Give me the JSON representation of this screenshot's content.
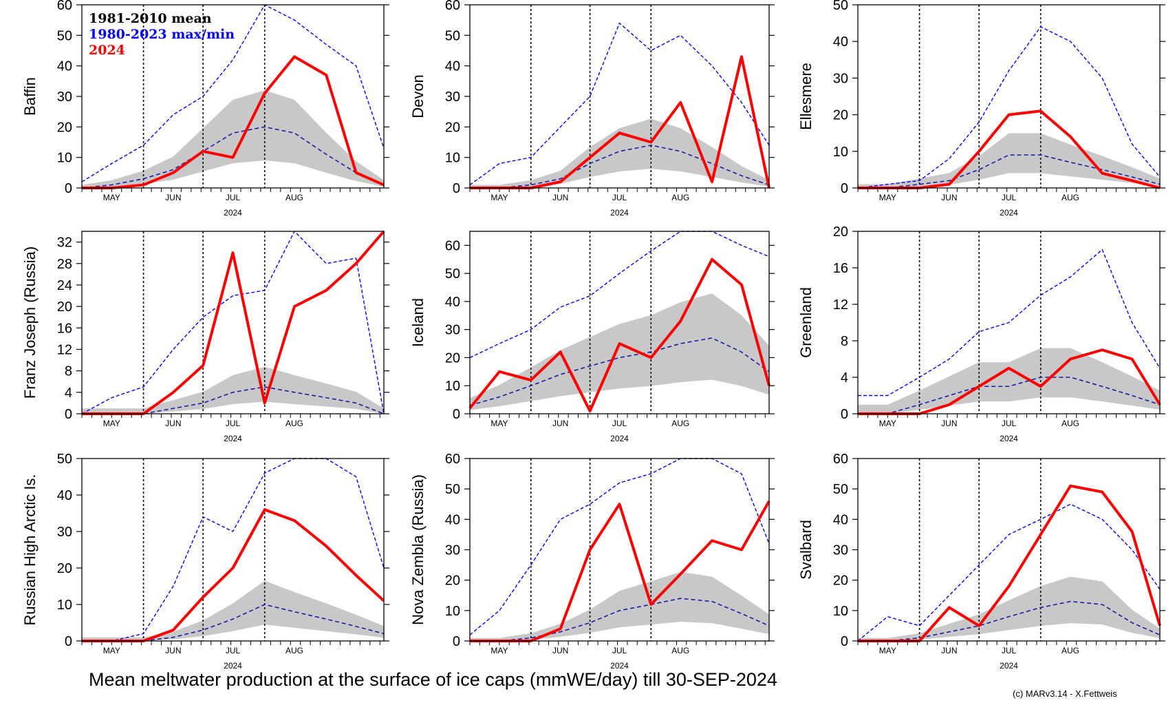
{
  "caption": "Mean meltwater production at the surface of ice caps (mmWE/day) till 30-SEP-2024",
  "credit": "(c) MARv3.14 - X.Fettweis",
  "legend": {
    "mean_label": "1981-2010 mean",
    "maxmin_label": "1980-2023 max/min",
    "current_label": "2024"
  },
  "colors": {
    "current": "#ff0000",
    "maxmin": "#0000ff",
    "mean": "#1a1aa6",
    "envelope": "#c8c8c8",
    "month_divider": "#000000"
  },
  "chart_data": [
    {
      "type": "line",
      "ylabel": "Baffin",
      "xlabel": "2024",
      "month_ticks": [
        "MAY",
        "JUN",
        "JUL",
        "AUG"
      ],
      "yticks": [
        "0",
        "10",
        "20",
        "30",
        "40",
        "50",
        "60"
      ],
      "ylim": [
        0,
        60
      ],
      "x": [
        "05-01",
        "05-15",
        "06-01",
        "06-15",
        "07-01",
        "07-15",
        "08-01",
        "08-15",
        "09-01",
        "09-15",
        "09-30"
      ],
      "series": [
        {
          "name": "2024",
          "values": [
            0,
            0,
            1,
            5,
            12,
            10,
            31,
            43,
            37,
            5,
            1
          ]
        },
        {
          "name": "1981-2010 mean",
          "values": [
            0,
            1,
            3,
            6,
            12,
            18,
            20,
            18,
            11,
            5,
            1
          ]
        },
        {
          "name": "1980-2023 max/min",
          "values": [
            2,
            8,
            14,
            24,
            30,
            42,
            60,
            55,
            47,
            40,
            13
          ]
        }
      ]
    },
    {
      "type": "line",
      "ylabel": "Devon",
      "xlabel": "2024",
      "month_ticks": [
        "MAY",
        "JUN",
        "JUL",
        "AUG"
      ],
      "yticks": [
        "0",
        "10",
        "20",
        "30",
        "40",
        "50",
        "60"
      ],
      "ylim": [
        0,
        60
      ],
      "x": [
        "05-01",
        "05-15",
        "06-01",
        "06-15",
        "07-01",
        "07-15",
        "08-01",
        "08-15",
        "09-01",
        "09-15",
        "09-30"
      ],
      "series": [
        {
          "name": "2024",
          "values": [
            0,
            0,
            0,
            2,
            10,
            18,
            15,
            28,
            2,
            43,
            0
          ]
        },
        {
          "name": "1981-2010 mean",
          "values": [
            0,
            0,
            1,
            3,
            8,
            12,
            14,
            12,
            8,
            4,
            1
          ]
        },
        {
          "name": "1980-2023 max/min",
          "values": [
            1,
            8,
            10,
            20,
            30,
            54,
            45,
            50,
            40,
            28,
            14
          ]
        }
      ]
    },
    {
      "type": "line",
      "ylabel": "Ellesmere",
      "xlabel": "2024",
      "month_ticks": [
        "MAY",
        "JUN",
        "JUL",
        "AUG"
      ],
      "yticks": [
        "0",
        "10",
        "20",
        "30",
        "40",
        "50"
      ],
      "ylim": [
        0,
        50
      ],
      "x": [
        "05-01",
        "05-15",
        "06-01",
        "06-15",
        "07-01",
        "07-15",
        "08-01",
        "08-15",
        "09-01",
        "09-15",
        "09-30"
      ],
      "series": [
        {
          "name": "2024",
          "values": [
            0,
            0,
            0,
            1,
            10,
            20,
            21,
            14,
            4,
            2,
            0
          ]
        },
        {
          "name": "1981-2010 mean",
          "values": [
            0,
            0,
            1,
            2,
            5,
            9,
            9,
            7,
            5,
            3,
            1
          ]
        },
        {
          "name": "1980-2023 max/min",
          "values": [
            0,
            1,
            2,
            8,
            18,
            32,
            44,
            40,
            30,
            12,
            3
          ]
        }
      ]
    },
    {
      "type": "line",
      "ylabel": "Franz Joseph (Russia)",
      "xlabel": "2024",
      "month_ticks": [
        "MAY",
        "JUN",
        "JUL",
        "AUG"
      ],
      "yticks": [
        "0",
        "4",
        "8",
        "12",
        "16",
        "20",
        "24",
        "28",
        "32"
      ],
      "ylim": [
        0,
        34
      ],
      "x": [
        "05-01",
        "05-15",
        "06-01",
        "06-15",
        "07-01",
        "07-15",
        "08-01",
        "08-15",
        "09-01",
        "09-15",
        "09-30"
      ],
      "series": [
        {
          "name": "2024",
          "values": [
            0,
            0,
            0,
            4,
            9,
            30,
            2,
            20,
            23,
            28,
            34
          ]
        },
        {
          "name": "1981-2010 mean",
          "values": [
            0,
            0,
            0,
            1,
            2,
            4,
            5,
            4,
            3,
            2,
            0
          ]
        },
        {
          "name": "1980-2023 max/min",
          "values": [
            0,
            3,
            5,
            12,
            18,
            22,
            23,
            34,
            28,
            29,
            0
          ]
        }
      ]
    },
    {
      "type": "line",
      "ylabel": "Iceland",
      "xlabel": "2024",
      "month_ticks": [
        "MAY",
        "JUN",
        "JUL",
        "AUG"
      ],
      "yticks": [
        "0",
        "10",
        "20",
        "30",
        "40",
        "50",
        "60"
      ],
      "ylim": [
        0,
        65
      ],
      "x": [
        "05-01",
        "05-15",
        "06-01",
        "06-15",
        "07-01",
        "07-15",
        "08-01",
        "08-15",
        "09-01",
        "09-15",
        "09-30"
      ],
      "series": [
        {
          "name": "2024",
          "values": [
            2,
            15,
            12,
            22,
            1,
            25,
            20,
            33,
            55,
            46,
            10
          ]
        },
        {
          "name": "1981-2010 mean",
          "values": [
            3,
            6,
            10,
            14,
            17,
            20,
            22,
            25,
            27,
            22,
            15
          ]
        },
        {
          "name": "1980-2023 max/min",
          "values": [
            20,
            25,
            30,
            38,
            42,
            50,
            58,
            65,
            65,
            60,
            56
          ]
        }
      ]
    },
    {
      "type": "line",
      "ylabel": "Greenland",
      "xlabel": "2024",
      "month_ticks": [
        "MAY",
        "JUN",
        "JUL",
        "AUG"
      ],
      "yticks": [
        "0",
        "4",
        "8",
        "12",
        "16",
        "20"
      ],
      "ylim": [
        0,
        20
      ],
      "x": [
        "05-01",
        "05-15",
        "06-01",
        "06-15",
        "07-01",
        "07-15",
        "08-01",
        "08-15",
        "09-01",
        "09-15",
        "09-30"
      ],
      "series": [
        {
          "name": "2024",
          "values": [
            0,
            0,
            0,
            1,
            3,
            5,
            3,
            6,
            7,
            6,
            1
          ]
        },
        {
          "name": "1981-2010 mean",
          "values": [
            0,
            0,
            1,
            2,
            3,
            3,
            4,
            4,
            3,
            2,
            1
          ]
        },
        {
          "name": "1980-2023 max/min",
          "values": [
            2,
            2,
            4,
            6,
            9,
            10,
            13,
            15,
            18,
            10,
            5
          ]
        }
      ]
    },
    {
      "type": "line",
      "ylabel": "Russian High Arctic Is.",
      "xlabel": "2024",
      "month_ticks": [
        "MAY",
        "JUN",
        "JUL",
        "AUG"
      ],
      "yticks": [
        "0",
        "10",
        "20",
        "30",
        "40",
        "50"
      ],
      "ylim": [
        0,
        50
      ],
      "x": [
        "05-01",
        "05-15",
        "06-01",
        "06-15",
        "07-01",
        "07-15",
        "08-01",
        "08-15",
        "09-01",
        "09-15",
        "09-30"
      ],
      "series": [
        {
          "name": "2024",
          "values": [
            0,
            0,
            0,
            3,
            12,
            20,
            36,
            33,
            26,
            18,
            11
          ]
        },
        {
          "name": "1981-2010 mean",
          "values": [
            0,
            0,
            0,
            1,
            3,
            6,
            10,
            8,
            6,
            4,
            2
          ]
        },
        {
          "name": "1980-2023 max/min",
          "values": [
            0,
            0,
            2,
            15,
            34,
            30,
            46,
            50,
            50,
            45,
            20
          ]
        }
      ]
    },
    {
      "type": "line",
      "ylabel": "Nova Zembla (Russia)",
      "xlabel": "2024",
      "month_ticks": [
        "MAY",
        "JUN",
        "JUL",
        "AUG"
      ],
      "yticks": [
        "0",
        "10",
        "20",
        "30",
        "40",
        "50",
        "60"
      ],
      "ylim": [
        0,
        60
      ],
      "x": [
        "05-01",
        "05-15",
        "06-01",
        "06-15",
        "07-01",
        "07-15",
        "08-01",
        "08-15",
        "09-01",
        "09-15",
        "09-30"
      ],
      "series": [
        {
          "name": "2024",
          "values": [
            0,
            0,
            0,
            4,
            30,
            45,
            12,
            22,
            33,
            30,
            46
          ]
        },
        {
          "name": "1981-2010 mean",
          "values": [
            0,
            0,
            1,
            3,
            6,
            10,
            12,
            14,
            13,
            9,
            5
          ]
        },
        {
          "name": "1980-2023 max/min",
          "values": [
            2,
            10,
            25,
            40,
            45,
            52,
            55,
            60,
            60,
            55,
            32
          ]
        }
      ]
    },
    {
      "type": "line",
      "ylabel": "Svalbard",
      "xlabel": "2024",
      "month_ticks": [
        "MAY",
        "JUN",
        "JUL",
        "AUG"
      ],
      "yticks": [
        "0",
        "10",
        "20",
        "30",
        "40",
        "50",
        "60"
      ],
      "ylim": [
        0,
        60
      ],
      "x": [
        "05-01",
        "05-15",
        "06-01",
        "06-15",
        "07-01",
        "07-15",
        "08-01",
        "08-15",
        "09-01",
        "09-15",
        "09-30"
      ],
      "series": [
        {
          "name": "2024",
          "values": [
            0,
            0,
            0,
            11,
            5,
            18,
            35,
            51,
            49,
            36,
            5
          ]
        },
        {
          "name": "1981-2010 mean",
          "values": [
            0,
            0,
            1,
            3,
            5,
            8,
            11,
            13,
            12,
            6,
            2
          ]
        },
        {
          "name": "1980-2023 max/min",
          "values": [
            0,
            8,
            5,
            15,
            25,
            35,
            40,
            45,
            40,
            30,
            17
          ]
        }
      ]
    }
  ]
}
